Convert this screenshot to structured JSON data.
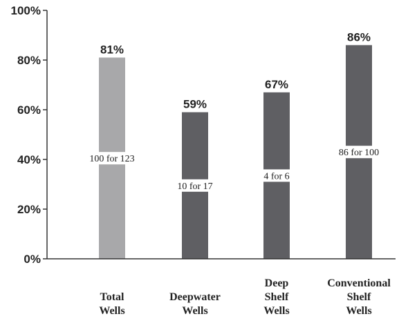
{
  "chart_data": {
    "type": "bar",
    "categories": [
      [
        "Total",
        "Wells"
      ],
      [
        "Deepwater",
        "Wells"
      ],
      [
        "Deep",
        "Shelf",
        "Wells"
      ],
      [
        "Conventional",
        "Shelf",
        "Wells"
      ]
    ],
    "values": [
      81,
      59,
      67,
      86
    ],
    "value_labels": [
      "81%",
      "59%",
      "67%",
      "86%"
    ],
    "inner_labels": [
      "100 for 123",
      "10 for 17",
      "4 for 6",
      "86 for 100"
    ],
    "bar_colors": [
      "#a8a8aa",
      "#5f5f63",
      "#5f5f63",
      "#5f5f63"
    ],
    "ylim": [
      0,
      100
    ],
    "yticks": [
      0,
      20,
      40,
      60,
      80,
      100
    ],
    "ytick_labels": [
      "0%",
      "20%",
      "40%",
      "60%",
      "80%",
      "100%"
    ],
    "title": "",
    "xlabel": "",
    "ylabel": "",
    "grid": false,
    "legend": false
  }
}
